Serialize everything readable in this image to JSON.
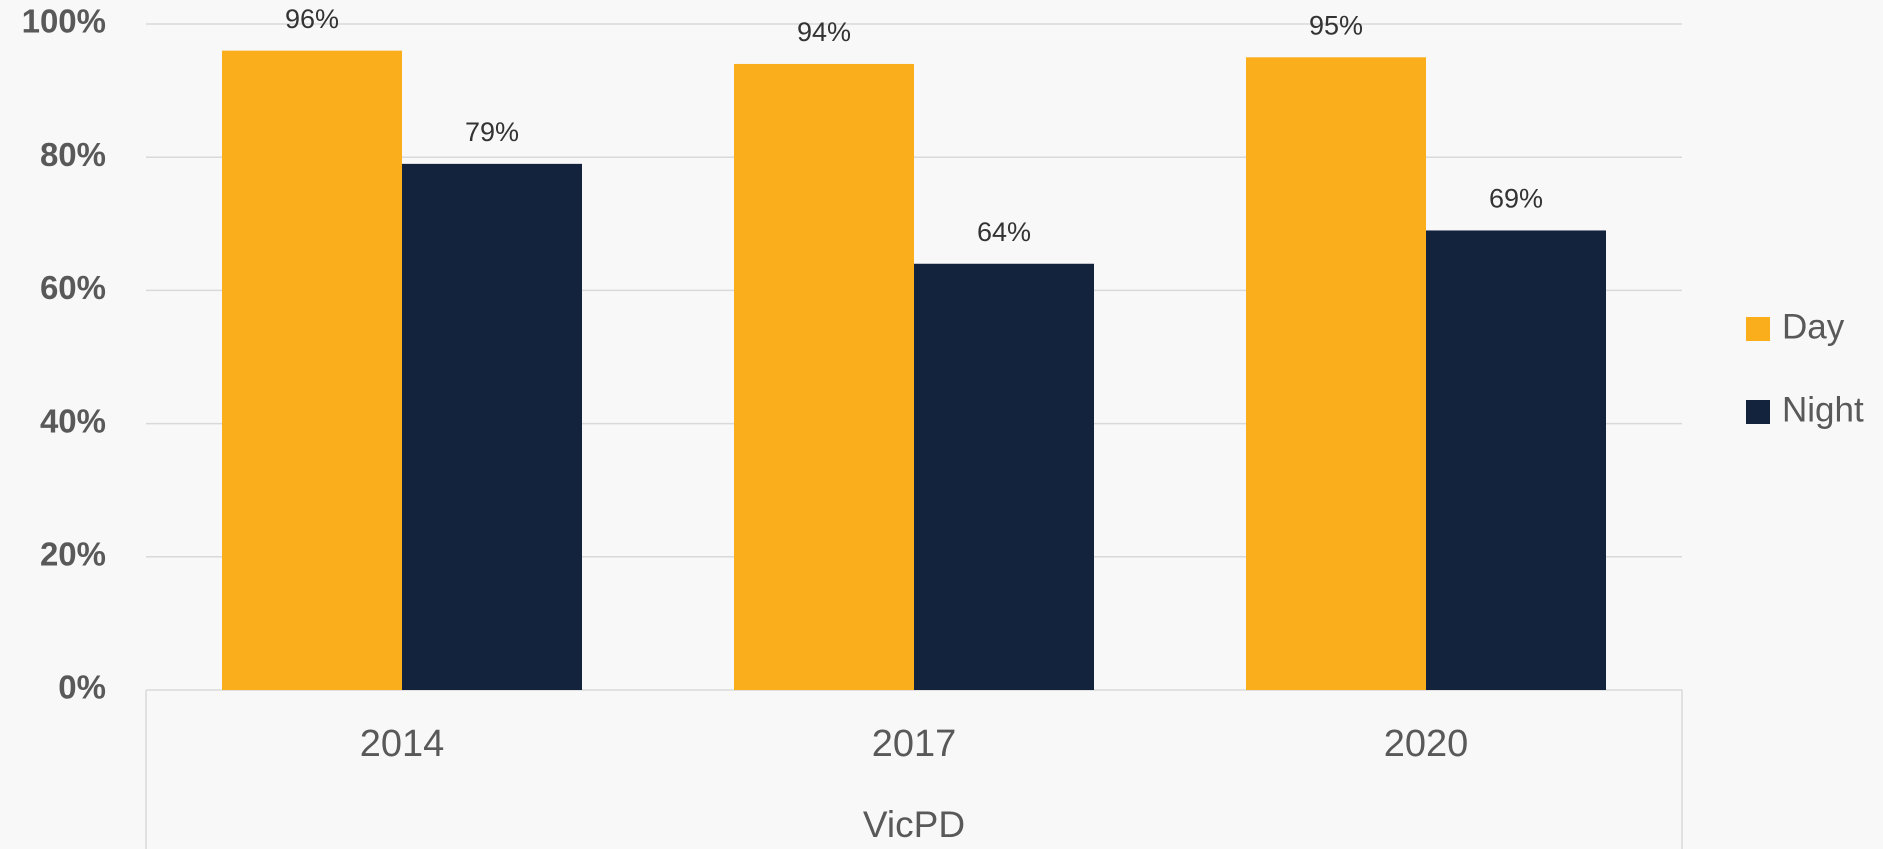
{
  "chart_data": {
    "type": "bar",
    "categories": [
      "2014",
      "2017",
      "2020"
    ],
    "category_group": "VicPD",
    "series": [
      {
        "name": "Day",
        "color": "#FBAE1B",
        "values": [
          96,
          94,
          95
        ],
        "value_labels": [
          "96%",
          "94%",
          "95%"
        ]
      },
      {
        "name": "Night",
        "color": "#14233D",
        "values": [
          79,
          64,
          69
        ],
        "value_labels": [
          "79%",
          "64%",
          "69%"
        ]
      }
    ],
    "ylim": [
      0,
      100
    ],
    "yticks": [
      {
        "value": 0,
        "label": "0%"
      },
      {
        "value": 20,
        "label": "20%"
      },
      {
        "value": 40,
        "label": "40%"
      },
      {
        "value": 60,
        "label": "60%"
      },
      {
        "value": 80,
        "label": "80%"
      },
      {
        "value": 100,
        "label": "100%"
      }
    ],
    "grid": true,
    "legend": "right"
  }
}
